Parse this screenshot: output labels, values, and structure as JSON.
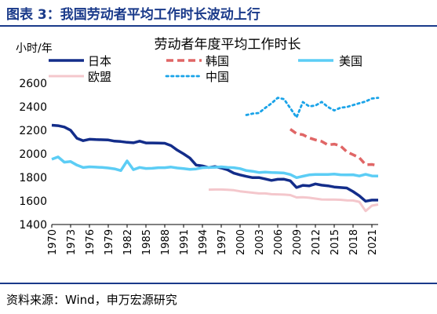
{
  "figure": {
    "title": "图表 3：我国劳动者平均工作时长波动上行",
    "source": "资料来源：Wind，申万宏源研究"
  },
  "colors": {
    "accent": "#1a3a8a",
    "japan": "#132d8a",
    "korea": "#e06666",
    "usa": "#5ccdf5",
    "china": "#1aa3e8",
    "eu": "#f4c7cc"
  },
  "chart_data": {
    "type": "line",
    "title": "劳动者年度平均工作时长",
    "ylabel": "小时/年",
    "xlabel": "",
    "ylim": [
      1400,
      2600
    ],
    "xlim": [
      1970,
      2022
    ],
    "yticks": [
      1400,
      1600,
      1800,
      2000,
      2200,
      2400,
      2600
    ],
    "xticks": [
      1970,
      1973,
      1976,
      1979,
      1982,
      1985,
      1988,
      1991,
      1994,
      1997,
      2000,
      2003,
      2006,
      2009,
      2012,
      2015,
      2018,
      2021
    ],
    "grid": false,
    "legend_position": "top",
    "series": [
      {
        "name": "日本",
        "style": "solid",
        "color": "#132d8a",
        "x": [
          1970,
          1971,
          1972,
          1973,
          1974,
          1975,
          1976,
          1977,
          1978,
          1979,
          1980,
          1981,
          1982,
          1983,
          1984,
          1985,
          1986,
          1987,
          1988,
          1989,
          1990,
          1991,
          1992,
          1993,
          1994,
          1995,
          1996,
          1997,
          1998,
          1999,
          2000,
          2001,
          2002,
          2003,
          2004,
          2005,
          2006,
          2007,
          2008,
          2009,
          2010,
          2011,
          2012,
          2013,
          2014,
          2015,
          2016,
          2017,
          2018,
          2019,
          2020,
          2021,
          2022
        ],
        "y": [
          2243,
          2239,
          2228,
          2201,
          2133,
          2112,
          2124,
          2121,
          2120,
          2118,
          2108,
          2105,
          2098,
          2094,
          2108,
          2093,
          2093,
          2092,
          2090,
          2070,
          2031,
          2000,
          1965,
          1905,
          1898,
          1884,
          1892,
          1880,
          1865,
          1836,
          1821,
          1809,
          1798,
          1799,
          1787,
          1775,
          1784,
          1785,
          1771,
          1714,
          1733,
          1728,
          1745,
          1734,
          1729,
          1719,
          1714,
          1710,
          1680,
          1644,
          1598,
          1607,
          1607
        ]
      },
      {
        "name": "韩国",
        "style": "dashed",
        "color": "#e06666",
        "x": [
          2008,
          2009,
          2010,
          2011,
          2012,
          2013,
          2014,
          2015,
          2016,
          2017,
          2018,
          2019,
          2020,
          2021,
          2022
        ],
        "y": [
          2209,
          2172,
          2163,
          2136,
          2119,
          2106,
          2076,
          2083,
          2068,
          2018,
          1993,
          1967,
          1908,
          1910,
          1901
        ]
      },
      {
        "name": "美国",
        "style": "solid",
        "color": "#5ccdf5",
        "x": [
          1970,
          1971,
          1972,
          1973,
          1974,
          1975,
          1976,
          1977,
          1978,
          1979,
          1980,
          1981,
          1982,
          1983,
          1984,
          1985,
          1986,
          1987,
          1988,
          1989,
          1990,
          1991,
          1992,
          1993,
          1994,
          1995,
          1996,
          1997,
          1998,
          1999,
          2000,
          2001,
          2002,
          2003,
          2004,
          2005,
          2006,
          2007,
          2008,
          2009,
          2010,
          2011,
          2012,
          2013,
          2014,
          2015,
          2016,
          2017,
          2018,
          2019,
          2020,
          2021,
          2022
        ],
        "y": [
          1954,
          1974,
          1929,
          1935,
          1905,
          1884,
          1890,
          1887,
          1885,
          1880,
          1873,
          1858,
          1940,
          1866,
          1885,
          1876,
          1877,
          1883,
          1883,
          1888,
          1880,
          1875,
          1869,
          1872,
          1883,
          1885,
          1886,
          1890,
          1885,
          1883,
          1875,
          1858,
          1852,
          1842,
          1845,
          1841,
          1840,
          1837,
          1825,
          1798,
          1810,
          1821,
          1825,
          1825,
          1825,
          1829,
          1823,
          1821,
          1823,
          1812,
          1826,
          1813,
          1811
        ]
      },
      {
        "name": "中国",
        "style": "dotted",
        "color": "#1aa3e8",
        "x": [
          2001,
          2002,
          2003,
          2004,
          2005,
          2006,
          2007,
          2008,
          2009,
          2010,
          2011,
          2012,
          2013,
          2014,
          2015,
          2016,
          2017,
          2018,
          2019,
          2020,
          2021,
          2022
        ],
        "y": [
          2330,
          2342,
          2347,
          2390,
          2429,
          2476,
          2465,
          2388,
          2310,
          2440,
          2404,
          2410,
          2441,
          2398,
          2369,
          2392,
          2398,
          2414,
          2430,
          2445,
          2470,
          2476
        ]
      },
      {
        "name": "欧盟",
        "style": "solid",
        "color": "#f4c7cc",
        "x": [
          1995,
          1996,
          1997,
          1998,
          1999,
          2000,
          2001,
          2002,
          2003,
          2004,
          2005,
          2006,
          2007,
          2008,
          2009,
          2010,
          2011,
          2012,
          2013,
          2014,
          2015,
          2016,
          2017,
          2018,
          2019,
          2020,
          2021,
          2022
        ],
        "y": [
          1696,
          1697,
          1697,
          1695,
          1691,
          1682,
          1676,
          1670,
          1664,
          1664,
          1657,
          1656,
          1654,
          1650,
          1630,
          1632,
          1627,
          1620,
          1613,
          1611,
          1611,
          1610,
          1605,
          1604,
          1593,
          1515,
          1560,
          1570
        ]
      }
    ]
  }
}
